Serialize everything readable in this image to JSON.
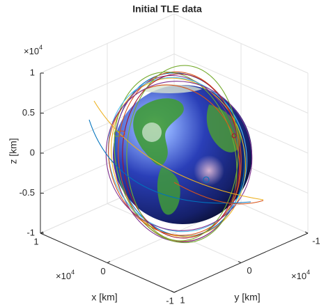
{
  "chart_data": {
    "type": "3d-line",
    "title": "Initial TLE data",
    "xlabel": "x [km]",
    "ylabel": "y [km]",
    "zlabel": "z [km]",
    "xlim": [
      -1,
      1
    ],
    "ylim": [
      -1,
      1
    ],
    "zlim": [
      -1,
      1
    ],
    "xticks": [
      -1,
      0,
      1
    ],
    "yticks": [
      -1,
      0,
      1
    ],
    "zticks": [
      -1,
      -0.5,
      0,
      0.5,
      1
    ],
    "axis_multiplier": {
      "base": "×10",
      "exponent": "4"
    },
    "grid": true
  }
}
